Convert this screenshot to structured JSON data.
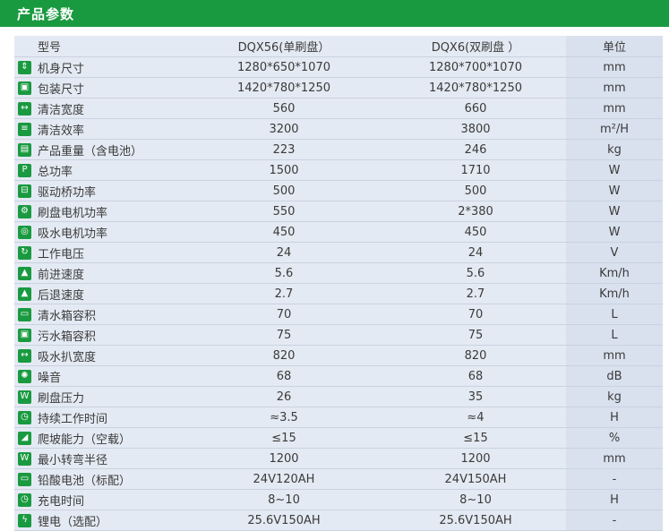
{
  "header": {
    "title": "产品参数"
  },
  "table": {
    "columns": [
      "型号",
      "DQX56(单刷盘）",
      "DQX6(双刷盘 ）",
      "单位"
    ],
    "rows": [
      {
        "icon": "height-icon",
        "glyph": "⇕",
        "name": "机身尺寸",
        "a": "1280*650*1070",
        "b": "1280*700*1070",
        "unit": "mm"
      },
      {
        "icon": "package-icon",
        "glyph": "▣",
        "name": "包装尺寸",
        "a": "1420*780*1250",
        "b": "1420*780*1250",
        "unit": "mm"
      },
      {
        "icon": "width-icon",
        "glyph": "↔",
        "name": "清洁宽度",
        "a": "560",
        "b": "660",
        "unit": "mm"
      },
      {
        "icon": "efficiency-icon",
        "glyph": "≡",
        "name": "清洁效率",
        "a": "3200",
        "b": "3800",
        "unit": "m²/H"
      },
      {
        "icon": "weight-icon",
        "glyph": "▤",
        "name": "产品重量（含电池）",
        "a": "223",
        "b": "246",
        "unit": "kg"
      },
      {
        "icon": "power-icon",
        "glyph": "P",
        "name": "总功率",
        "a": "1500",
        "b": "1710",
        "unit": "W"
      },
      {
        "icon": "drive-axle-icon",
        "glyph": "⊟",
        "name": "驱动桥功率",
        "a": "500",
        "b": "500",
        "unit": "W"
      },
      {
        "icon": "brush-motor-icon",
        "glyph": "⚙",
        "name": "刷盘电机功率",
        "a": "550",
        "b": "2*380",
        "unit": "W"
      },
      {
        "icon": "suction-motor-icon",
        "glyph": "◎",
        "name": "吸水电机功率",
        "a": "450",
        "b": "450",
        "unit": "W"
      },
      {
        "icon": "voltage-icon",
        "glyph": "↻",
        "name": "工作电压",
        "a": "24",
        "b": "24",
        "unit": "V"
      },
      {
        "icon": "forward-speed-icon",
        "glyph": "▲",
        "name": "前进速度",
        "a": "5.6",
        "b": "5.6",
        "unit": "Km/h"
      },
      {
        "icon": "reverse-speed-icon",
        "glyph": "▲",
        "name": "后退速度",
        "a": "2.7",
        "b": "2.7",
        "unit": "Km/h"
      },
      {
        "icon": "clean-water-tank-icon",
        "glyph": "▭",
        "name": "清水箱容积",
        "a": "70",
        "b": "70",
        "unit": "L"
      },
      {
        "icon": "dirty-water-tank-icon",
        "glyph": "▣",
        "name": "污水箱容积",
        "a": "75",
        "b": "75",
        "unit": "L"
      },
      {
        "icon": "squeegee-width-icon",
        "glyph": "↔",
        "name": "吸水扒宽度",
        "a": "820",
        "b": "820",
        "unit": "mm"
      },
      {
        "icon": "noise-icon",
        "glyph": "✺",
        "name": "噪音",
        "a": "68",
        "b": "68",
        "unit": "dB"
      },
      {
        "icon": "brush-pressure-icon",
        "glyph": "W",
        "name": "刷盘压力",
        "a": "26",
        "b": "35",
        "unit": "kg"
      },
      {
        "icon": "runtime-icon",
        "glyph": "◷",
        "name": "持续工作时间",
        "a": "≈3.5",
        "b": "≈4",
        "unit": "H"
      },
      {
        "icon": "gradeability-icon",
        "glyph": "◢",
        "name": "爬坡能力（空载）",
        "a": "≤15",
        "b": "≤15",
        "unit": "%"
      },
      {
        "icon": "turning-radius-icon",
        "glyph": "W",
        "name": "最小转弯半径",
        "a": "1200",
        "b": "1200",
        "unit": "mm"
      },
      {
        "icon": "lead-acid-battery-icon",
        "glyph": "▭",
        "name": "铅酸电池（标配）",
        "a": "24V120AH",
        "b": "24V150AH",
        "unit": "-"
      },
      {
        "icon": "charge-time-icon",
        "glyph": "◷",
        "name": "充电时间",
        "a": "8~10",
        "b": "8~10",
        "unit": "H"
      },
      {
        "icon": "lithium-battery-icon",
        "glyph": "ϟ",
        "name": "锂电（选配）",
        "a": "25.6V150AH",
        "b": "25.6V150AH",
        "unit": "-"
      }
    ]
  },
  "colors": {
    "accent": "#1a9a40",
    "table_bg": "#e4eaf3",
    "unit_bg": "#d9e1ee"
  }
}
